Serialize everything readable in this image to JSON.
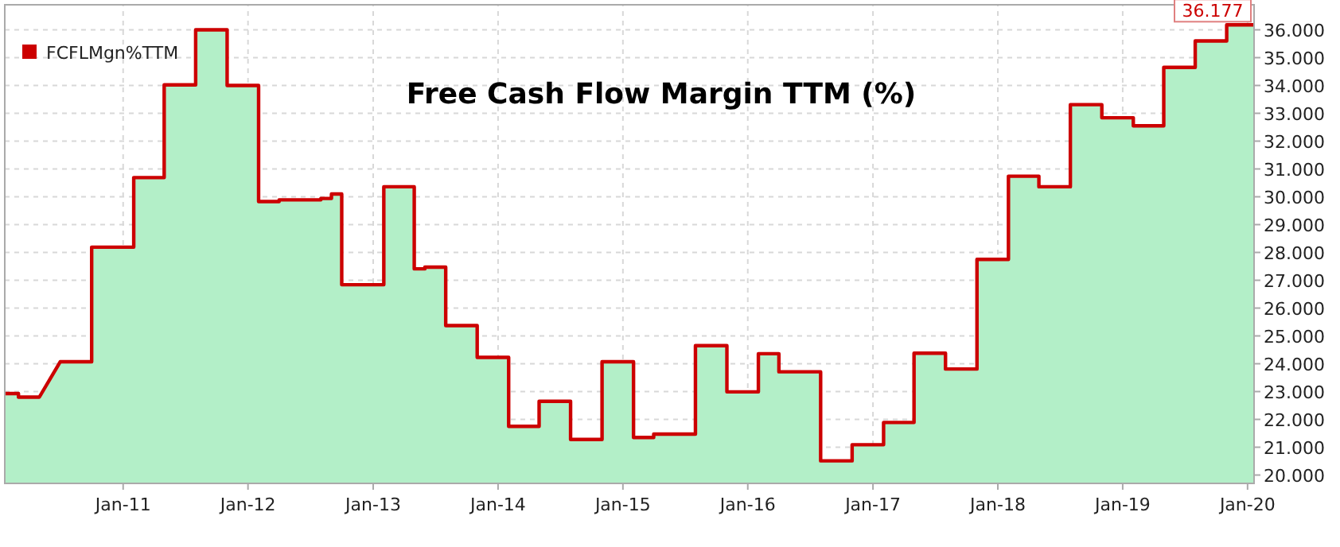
{
  "chart_data": {
    "type": "area",
    "title": "Free Cash Flow Margin TTM (%)",
    "x": [
      "2010-01-20",
      "2010-03",
      "2010-03",
      "2010-05",
      "2010-07",
      "2010-10",
      "2010-10",
      "2011-02",
      "2011-02",
      "2011-05",
      "2011-05",
      "2011-08",
      "2011-08",
      "2011-11",
      "2011-11",
      "2012-02",
      "2012-02",
      "2012-04",
      "2012-04",
      "2012-08",
      "2012-08",
      "2012-09",
      "2012-09",
      "2012-10",
      "2012-10",
      "2013-02",
      "2013-02",
      "2013-05",
      "2013-05",
      "2013-06",
      "2013-06",
      "2013-08",
      "2013-08",
      "2013-11",
      "2013-11",
      "2014-02",
      "2014-02",
      "2014-05",
      "2014-05",
      "2014-08",
      "2014-08",
      "2014-11",
      "2014-11",
      "2015-02",
      "2015-02",
      "2015-04",
      "2015-04",
      "2015-08",
      "2015-08",
      "2015-11",
      "2015-11",
      "2016-02",
      "2016-02",
      "2016-04",
      "2016-04",
      "2016-08",
      "2016-08",
      "2016-11",
      "2016-11",
      "2017-02",
      "2017-02",
      "2017-05",
      "2017-05",
      "2017-08",
      "2017-08",
      "2017-11",
      "2017-11",
      "2018-02",
      "2018-02",
      "2018-05",
      "2018-05",
      "2018-08",
      "2018-08",
      "2018-11",
      "2018-11",
      "2019-02",
      "2019-02",
      "2019-05",
      "2019-05",
      "2019-08",
      "2019-08",
      "2019-11",
      "2019-11",
      "2020-01-20"
    ],
    "series": [
      {
        "color": "#b3efc8",
        "values": [
          22.93,
          22.93,
          22.8,
          22.8,
          24.07,
          24.07,
          28.19,
          28.19,
          30.69,
          30.69,
          34.02,
          34.02,
          36.0,
          36.0,
          34.0,
          34.0,
          29.83,
          29.83,
          29.89,
          29.89,
          29.94,
          29.94,
          30.1,
          30.1,
          26.84,
          26.84,
          30.36,
          30.36,
          27.41,
          27.41,
          27.47,
          27.47,
          25.37,
          25.37,
          24.23,
          24.23,
          21.75,
          21.75,
          22.65,
          22.65,
          21.28,
          21.28,
          24.07,
          24.07,
          21.35,
          21.35,
          21.47,
          21.47,
          24.65,
          24.65,
          22.99,
          22.99,
          24.36,
          24.36,
          23.71,
          23.71,
          20.51,
          20.51,
          21.09,
          21.09,
          21.89,
          21.89,
          24.38,
          24.38,
          23.81,
          23.81,
          27.75,
          27.75,
          30.74,
          30.74,
          30.36,
          30.36,
          33.31,
          33.31,
          32.84,
          32.84,
          32.55,
          32.55,
          34.65,
          34.65,
          35.6,
          35.6,
          36.177,
          36.177
        ]
      },
      {
        "type": "line",
        "name": "FCFLMgn%TTM",
        "color": "#cc0000",
        "values": [
          22.93,
          22.93,
          22.8,
          22.8,
          24.07,
          24.07,
          28.19,
          28.19,
          30.69,
          30.69,
          34.02,
          34.02,
          36.0,
          36.0,
          34.0,
          34.0,
          29.83,
          29.83,
          29.89,
          29.89,
          29.94,
          29.94,
          30.1,
          30.1,
          26.84,
          26.84,
          30.36,
          30.36,
          27.41,
          27.41,
          27.47,
          27.47,
          25.37,
          25.37,
          24.23,
          24.23,
          21.75,
          21.75,
          22.65,
          22.65,
          21.28,
          21.28,
          24.07,
          24.07,
          21.35,
          21.35,
          21.47,
          21.47,
          24.65,
          24.65,
          22.99,
          22.99,
          24.36,
          24.36,
          23.71,
          23.71,
          20.51,
          20.51,
          21.09,
          21.09,
          21.89,
          21.89,
          24.38,
          24.38,
          23.81,
          23.81,
          27.75,
          27.75,
          30.74,
          30.74,
          30.36,
          30.36,
          33.31,
          33.31,
          32.84,
          32.84,
          32.55,
          32.55,
          34.65,
          34.65,
          35.6,
          35.6,
          36.177,
          36.177
        ]
      }
    ],
    "annotations": [
      {
        "text": "36.177",
        "x": "2019-11",
        "y": 36.177
      }
    ],
    "xlim": [
      "2010-01-20",
      "2020-01-20"
    ],
    "xticks": [
      {
        "value": "2011-01",
        "label": "Jan-11"
      },
      {
        "value": "2012-01",
        "label": "Jan-12"
      },
      {
        "value": "2013-01",
        "label": "Jan-13"
      },
      {
        "value": "2014-01",
        "label": "Jan-14"
      },
      {
        "value": "2015-01",
        "label": "Jan-15"
      },
      {
        "value": "2016-01",
        "label": "Jan-16"
      },
      {
        "value": "2017-01",
        "label": "Jan-17"
      },
      {
        "value": "2018-01",
        "label": "Jan-18"
      },
      {
        "value": "2019-01",
        "label": "Jan-19"
      },
      {
        "value": "2020-01",
        "label": "Jan-20"
      }
    ],
    "ylim": [
      19.7,
      36.9
    ],
    "yticks": [
      {
        "value": 20,
        "label": "20.000"
      },
      {
        "value": 21,
        "label": "21.000"
      },
      {
        "value": 22,
        "label": "22.000"
      },
      {
        "value": 23,
        "label": "23.000"
      },
      {
        "value": 24,
        "label": "24.000"
      },
      {
        "value": 25,
        "label": "25.000"
      },
      {
        "value": 26,
        "label": "26.000"
      },
      {
        "value": 27,
        "label": "27.000"
      },
      {
        "value": 28,
        "label": "28.000"
      },
      {
        "value": 29,
        "label": "29.000"
      },
      {
        "value": 30,
        "label": "30.000"
      },
      {
        "value": 31,
        "label": "31.000"
      },
      {
        "value": 32,
        "label": "32.000"
      },
      {
        "value": 33,
        "label": "33.000"
      },
      {
        "value": 34,
        "label": "34.000"
      },
      {
        "value": 35,
        "label": "35.000"
      },
      {
        "value": 36,
        "label": "36.000"
      }
    ],
    "grid": true,
    "legend": "top left"
  }
}
